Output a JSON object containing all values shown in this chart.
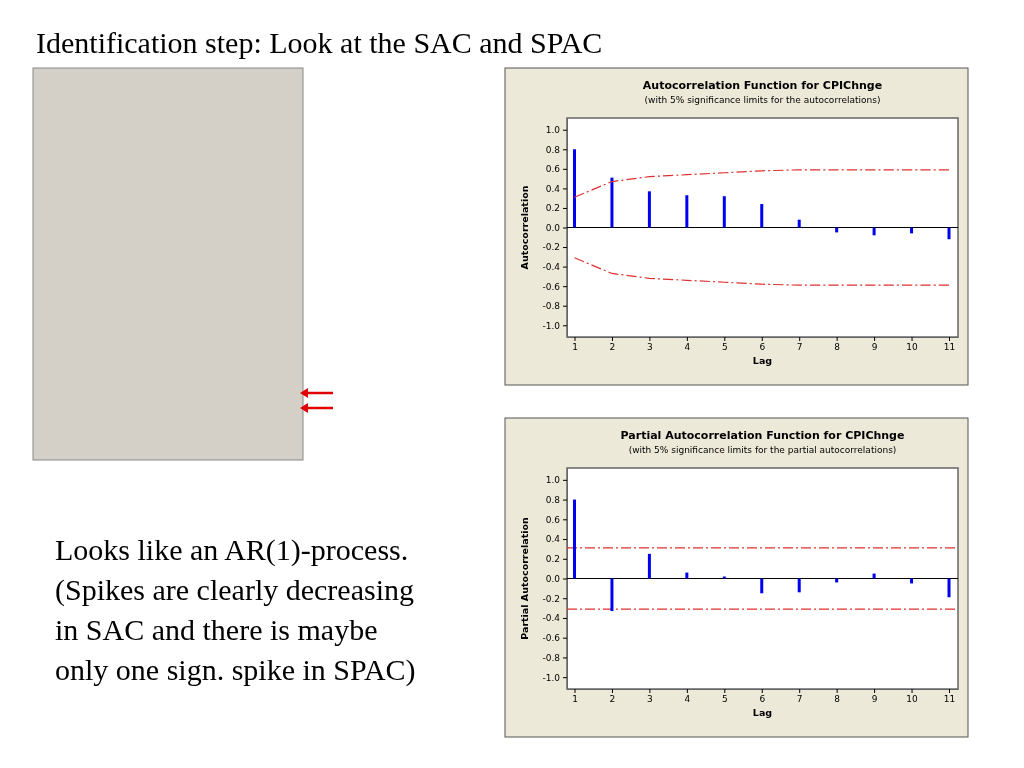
{
  "chart_data": [
    {
      "type": "other",
      "title": "Identification step: Look at the SAC and SPAC",
      "annotations": [
        "Looks like an AR(1)-process. (Spikes are clearly decreasing in SAC and there is maybe only one sign. spike in SPAC)"
      ]
    },
    {
      "type": "bar",
      "title": "Autocorrelation Function for CPIChnge",
      "subtitle": "(with 5% significance limits for the autocorrelations)",
      "xlabel": "Lag",
      "ylabel": "Autocorrelation",
      "x": [
        1,
        2,
        3,
        4,
        5,
        6,
        7,
        8,
        9,
        10,
        11
      ],
      "xlim": [
        0.8,
        11.24
      ],
      "xticks": [
        1,
        2,
        3,
        4,
        5,
        6,
        7,
        8,
        9,
        10,
        11
      ],
      "ylim": [
        -1.12,
        1.12
      ],
      "yticks": [
        {
          "value": -1,
          "label": "-1.0"
        },
        {
          "value": -0.8,
          "label": "-0.8"
        },
        {
          "value": -0.6,
          "label": "-0.6"
        },
        {
          "value": -0.4,
          "label": "-0.4"
        },
        {
          "value": -0.2,
          "label": "-0.2"
        },
        {
          "value": 0,
          "label": "0.0"
        },
        {
          "value": 0.2,
          "label": "0.2"
        },
        {
          "value": 0.4,
          "label": "0.4"
        },
        {
          "value": 0.6,
          "label": "0.6"
        },
        {
          "value": 0.8,
          "label": "0.8"
        },
        {
          "value": 1,
          "label": "1.0"
        }
      ],
      "series": [
        {
          "type": "bar",
          "color": "#0000ee",
          "values": [
            0.8,
            0.51,
            0.37,
            0.33,
            0.32,
            0.24,
            0.08,
            -0.05,
            -0.08,
            -0.06,
            -0.12
          ]
        },
        {
          "type": "line",
          "color": "#e03030",
          "line_style": "dashed",
          "values": [
            0.31,
            0.47,
            0.52,
            0.54,
            0.56,
            0.58,
            0.59,
            0.59,
            0.59,
            0.59,
            0.59
          ]
        },
        {
          "type": "line",
          "color": "#e03030",
          "line_style": "dashed",
          "values": [
            -0.31,
            -0.47,
            -0.52,
            -0.54,
            -0.56,
            -0.58,
            -0.59,
            -0.59,
            -0.59,
            -0.59,
            -0.59
          ]
        }
      ],
      "ref_lines": [
        {
          "axis": "y",
          "value": 0,
          "color": "#000000"
        }
      ]
    },
    {
      "type": "bar",
      "title": "Partial Autocorrelation Function for CPIChnge",
      "subtitle": "(with 5% significance limits for the partial autocorrelations)",
      "xlabel": "Lag",
      "ylabel": "Partial Autocorrelation",
      "x": [
        1,
        2,
        3,
        4,
        5,
        6,
        7,
        8,
        9,
        10,
        11
      ],
      "xlim": [
        0.8,
        11.24
      ],
      "xticks": [
        1,
        2,
        3,
        4,
        5,
        6,
        7,
        8,
        9,
        10,
        11
      ],
      "ylim": [
        -1.12,
        1.12
      ],
      "yticks": [
        {
          "value": -1,
          "label": "-1.0"
        },
        {
          "value": -0.8,
          "label": "-0.8"
        },
        {
          "value": -0.6,
          "label": "-0.6"
        },
        {
          "value": -0.4,
          "label": "-0.4"
        },
        {
          "value": -0.2,
          "label": "-0.2"
        },
        {
          "value": 0,
          "label": "0.0"
        },
        {
          "value": 0.2,
          "label": "0.2"
        },
        {
          "value": 0.4,
          "label": "0.4"
        },
        {
          "value": 0.6,
          "label": "0.6"
        },
        {
          "value": 0.8,
          "label": "0.8"
        },
        {
          "value": 1,
          "label": "1.0"
        }
      ],
      "series": [
        {
          "type": "bar",
          "color": "#0000ee",
          "values": [
            0.8,
            -0.33,
            0.25,
            0.06,
            0.02,
            -0.15,
            -0.14,
            -0.04,
            0.05,
            -0.05,
            -0.19
          ]
        }
      ],
      "ref_lines": [
        {
          "axis": "y",
          "value": 0,
          "color": "#000000"
        },
        {
          "axis": "y",
          "value": 0.31,
          "color": "#e03030",
          "line_style": "dashed"
        },
        {
          "axis": "y",
          "value": -0.31,
          "color": "#e03030",
          "line_style": "dashed"
        }
      ]
    }
  ]
}
